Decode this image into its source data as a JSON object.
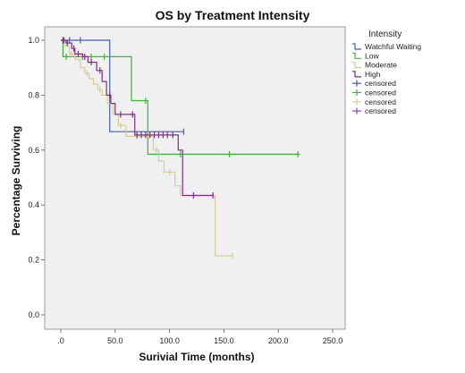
{
  "chart_data": {
    "type": "line",
    "title": "OS by Treatment Intensity",
    "xlabel": "Surivial Time (months)",
    "ylabel": "Percentage Surviving",
    "xlim": [
      0,
      250
    ],
    "ylim": [
      0,
      1
    ],
    "x_ticks": [
      0,
      50,
      100,
      150,
      200,
      250
    ],
    "x_tick_labels": [
      ".0",
      "50.0",
      "100.0",
      "150.0",
      "200.0",
      "250.0"
    ],
    "y_ticks": [
      0,
      0.2,
      0.4,
      0.6,
      0.8,
      1.0
    ],
    "y_tick_labels": [
      "0.0",
      "0.2",
      "0.4",
      "0.6",
      "0.8",
      "1.0"
    ],
    "grid": false,
    "background": "#f0f0f0",
    "legend": {
      "title": "Intensity",
      "placement": "right",
      "entries": [
        {
          "label": "Watchful Waiting",
          "kind": "line",
          "color": "#3f5fb4"
        },
        {
          "label": "Low",
          "kind": "line",
          "color": "#3cb43c"
        },
        {
          "label": "Moderate",
          "kind": "line",
          "color": "#d8cc96"
        },
        {
          "label": "High",
          "kind": "line",
          "color": "#7a2f86"
        },
        {
          "label": "censored",
          "kind": "marker",
          "color": "#3f5fb4"
        },
        {
          "label": "censored",
          "kind": "marker",
          "color": "#3cb43c"
        },
        {
          "label": "censored",
          "kind": "marker",
          "color": "#d8cc96"
        },
        {
          "label": "censored",
          "kind": "marker",
          "color": "#a040b0"
        }
      ]
    },
    "series": [
      {
        "name": "Watchful Waiting",
        "color": "#3f5fb4",
        "steps": [
          [
            0,
            1.0
          ],
          [
            45,
            1.0
          ],
          [
            45,
            0.667
          ],
          [
            113,
            0.667
          ]
        ],
        "censored": [
          3,
          8,
          18,
          113
        ]
      },
      {
        "name": "Low",
        "color": "#3cb43c",
        "steps": [
          [
            0,
            1.0
          ],
          [
            2,
            1.0
          ],
          [
            2,
            0.94
          ],
          [
            33,
            0.94
          ],
          [
            33,
            0.94
          ],
          [
            65,
            0.94
          ],
          [
            65,
            0.78
          ],
          [
            80,
            0.78
          ],
          [
            80,
            0.585
          ],
          [
            220,
            0.585
          ]
        ],
        "censored": [
          5,
          20,
          28,
          40,
          78,
          110,
          155,
          218
        ]
      },
      {
        "name": "Moderate",
        "color": "#d8cc96",
        "steps": [
          [
            0,
            1.0
          ],
          [
            4,
            1.0
          ],
          [
            4,
            0.98
          ],
          [
            8,
            0.98
          ],
          [
            8,
            0.95
          ],
          [
            13,
            0.95
          ],
          [
            13,
            0.93
          ],
          [
            18,
            0.93
          ],
          [
            18,
            0.9
          ],
          [
            22,
            0.9
          ],
          [
            22,
            0.88
          ],
          [
            26,
            0.88
          ],
          [
            26,
            0.86
          ],
          [
            30,
            0.86
          ],
          [
            30,
            0.84
          ],
          [
            34,
            0.84
          ],
          [
            34,
            0.82
          ],
          [
            38,
            0.82
          ],
          [
            38,
            0.8
          ],
          [
            43,
            0.8
          ],
          [
            43,
            0.77
          ],
          [
            48,
            0.77
          ],
          [
            48,
            0.73
          ],
          [
            53,
            0.73
          ],
          [
            53,
            0.69
          ],
          [
            60,
            0.69
          ],
          [
            60,
            0.65
          ],
          [
            85,
            0.65
          ],
          [
            85,
            0.6
          ],
          [
            90,
            0.6
          ],
          [
            90,
            0.56
          ],
          [
            95,
            0.56
          ],
          [
            95,
            0.52
          ],
          [
            105,
            0.52
          ],
          [
            105,
            0.47
          ],
          [
            110,
            0.47
          ],
          [
            110,
            0.435
          ],
          [
            142,
            0.435
          ],
          [
            142,
            0.215
          ],
          [
            158,
            0.215
          ]
        ],
        "censored": [
          10,
          24,
          36,
          55,
          70,
          88,
          100,
          158
        ]
      },
      {
        "name": "High",
        "color": "#7a2f86",
        "steps": [
          [
            0,
            1.0
          ],
          [
            5,
            1.0
          ],
          [
            5,
            0.99
          ],
          [
            10,
            0.99
          ],
          [
            10,
            0.97
          ],
          [
            13,
            0.97
          ],
          [
            13,
            0.95
          ],
          [
            20,
            0.95
          ],
          [
            20,
            0.94
          ],
          [
            25,
            0.94
          ],
          [
            25,
            0.92
          ],
          [
            33,
            0.92
          ],
          [
            33,
            0.89
          ],
          [
            38,
            0.89
          ],
          [
            38,
            0.85
          ],
          [
            42,
            0.85
          ],
          [
            42,
            0.8
          ],
          [
            46,
            0.8
          ],
          [
            46,
            0.77
          ],
          [
            50,
            0.77
          ],
          [
            50,
            0.73
          ],
          [
            58,
            0.73
          ],
          [
            58,
            0.73
          ],
          [
            68,
            0.73
          ],
          [
            68,
            0.655
          ],
          [
            108,
            0.655
          ],
          [
            108,
            0.6
          ],
          [
            112,
            0.6
          ],
          [
            112,
            0.435
          ],
          [
            140,
            0.435
          ]
        ],
        "censored": [
          2,
          6,
          12,
          16,
          22,
          28,
          36,
          45,
          55,
          66,
          70,
          74,
          78,
          82,
          86,
          90,
          94,
          98,
          103,
          122,
          140
        ]
      }
    ]
  }
}
